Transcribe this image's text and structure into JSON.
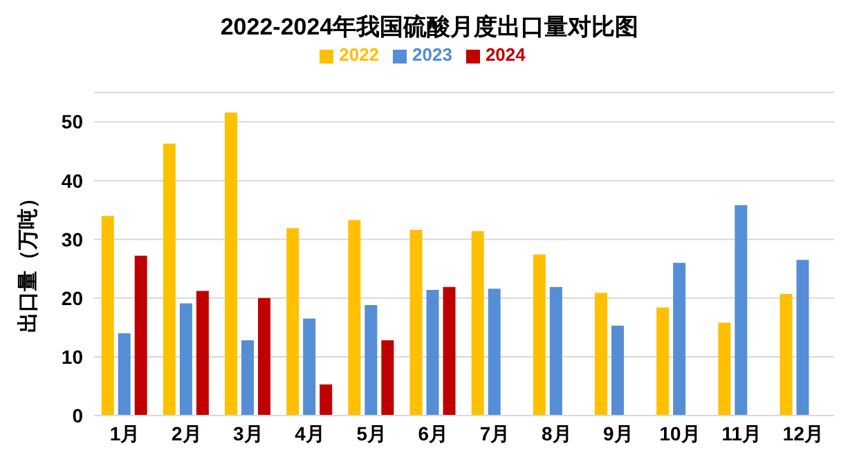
{
  "chart_data": {
    "type": "bar",
    "title": "2022-2024年我国硫酸月度出口量对比图",
    "ylabel": "出口量（万吨）",
    "categories": [
      "1月",
      "2月",
      "3月",
      "4月",
      "5月",
      "6月",
      "7月",
      "8月",
      "9月",
      "10月",
      "11月",
      "12月"
    ],
    "series": [
      {
        "name": "2022",
        "color": "#ffc000",
        "values": [
          34.0,
          46.3,
          51.6,
          31.9,
          33.3,
          31.6,
          31.4,
          27.4,
          20.9,
          18.4,
          15.8,
          20.7
        ]
      },
      {
        "name": "2023",
        "color": "#558ed5",
        "values": [
          14.0,
          19.1,
          12.8,
          16.5,
          18.8,
          21.4,
          21.6,
          21.9,
          15.3,
          26.0,
          35.8,
          26.5
        ]
      },
      {
        "name": "2024",
        "color": "#c00000",
        "values": [
          27.2,
          21.2,
          20.0,
          5.3,
          12.8,
          21.9,
          null,
          null,
          null,
          null,
          null,
          null
        ]
      }
    ],
    "ylim": [
      0,
      55
    ],
    "yticks": [
      0,
      10,
      20,
      30,
      40,
      50
    ],
    "grid": "y",
    "legend": "top"
  }
}
